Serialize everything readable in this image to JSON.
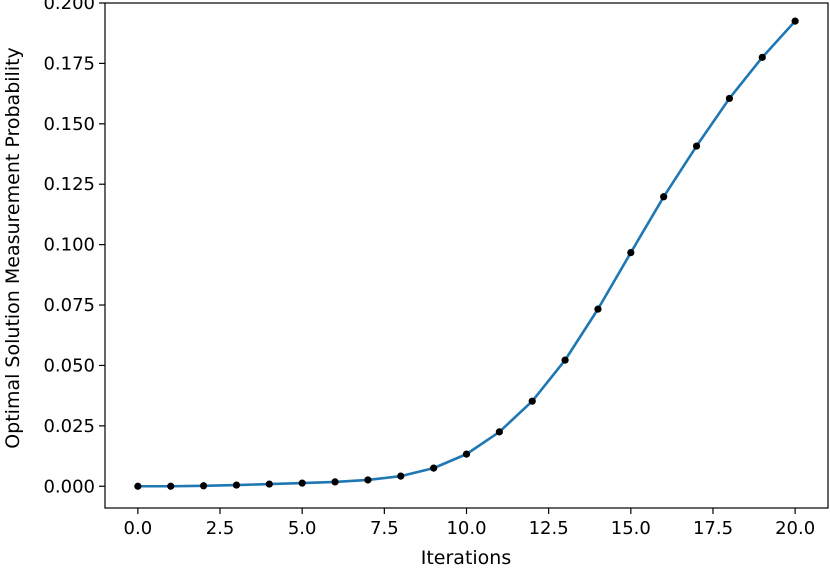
{
  "chart_data": {
    "type": "line",
    "title": "",
    "xlabel": "Iterations",
    "ylabel": "Optimal Solution Measurement Probability",
    "xlim": [
      -1.0,
      21.0
    ],
    "ylim": [
      -0.009,
      0.2
    ],
    "x_ticks": [
      0.0,
      2.5,
      5.0,
      7.5,
      10.0,
      12.5,
      15.0,
      17.5,
      20.0
    ],
    "x_tick_labels": [
      "0.0",
      "2.5",
      "5.0",
      "7.5",
      "10.0",
      "12.5",
      "15.0",
      "17.5",
      "20.0"
    ],
    "y_ticks": [
      0.0,
      0.025,
      0.05,
      0.075,
      0.1,
      0.125,
      0.15,
      0.175,
      0.2
    ],
    "y_tick_labels": [
      "0.000",
      "0.025",
      "0.050",
      "0.075",
      "0.100",
      "0.125",
      "0.150",
      "0.175",
      "0.200"
    ],
    "grid": false,
    "legend": "none",
    "series": [
      {
        "line_color": "#1f77b4",
        "marker_color": "#000000",
        "x": [
          0,
          1,
          2,
          3,
          4,
          5,
          6,
          7,
          8,
          9,
          10,
          11,
          12,
          13,
          14,
          15,
          16,
          17,
          18,
          19,
          20
        ],
        "y": [
          0.0,
          0.0,
          0.0002,
          0.0005,
          0.0009,
          0.0013,
          0.0018,
          0.0026,
          0.0042,
          0.0075,
          0.0133,
          0.0225,
          0.0352,
          0.0522,
          0.0733,
          0.0967,
          0.1198,
          0.1408,
          0.1605,
          0.1775,
          0.1925
        ]
      }
    ]
  }
}
